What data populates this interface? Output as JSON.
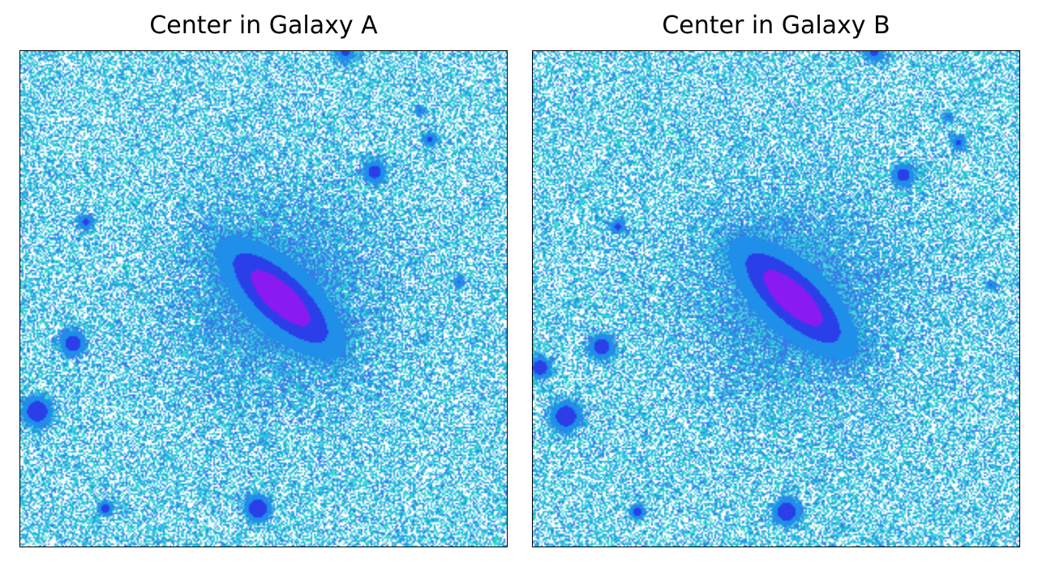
{
  "panels": [
    {
      "title": "Center in Galaxy A"
    },
    {
      "title": "Center in Galaxy B"
    }
  ],
  "colors": {
    "background_noise": [
      "#ffffff",
      "#4fd1e6",
      "#1ba9e0",
      "#27e0c0",
      "#3a7ae8"
    ],
    "source_core": "#8a1bf0",
    "source_mid": "#2a3fe8",
    "source_outer": "#1f8fea"
  }
}
